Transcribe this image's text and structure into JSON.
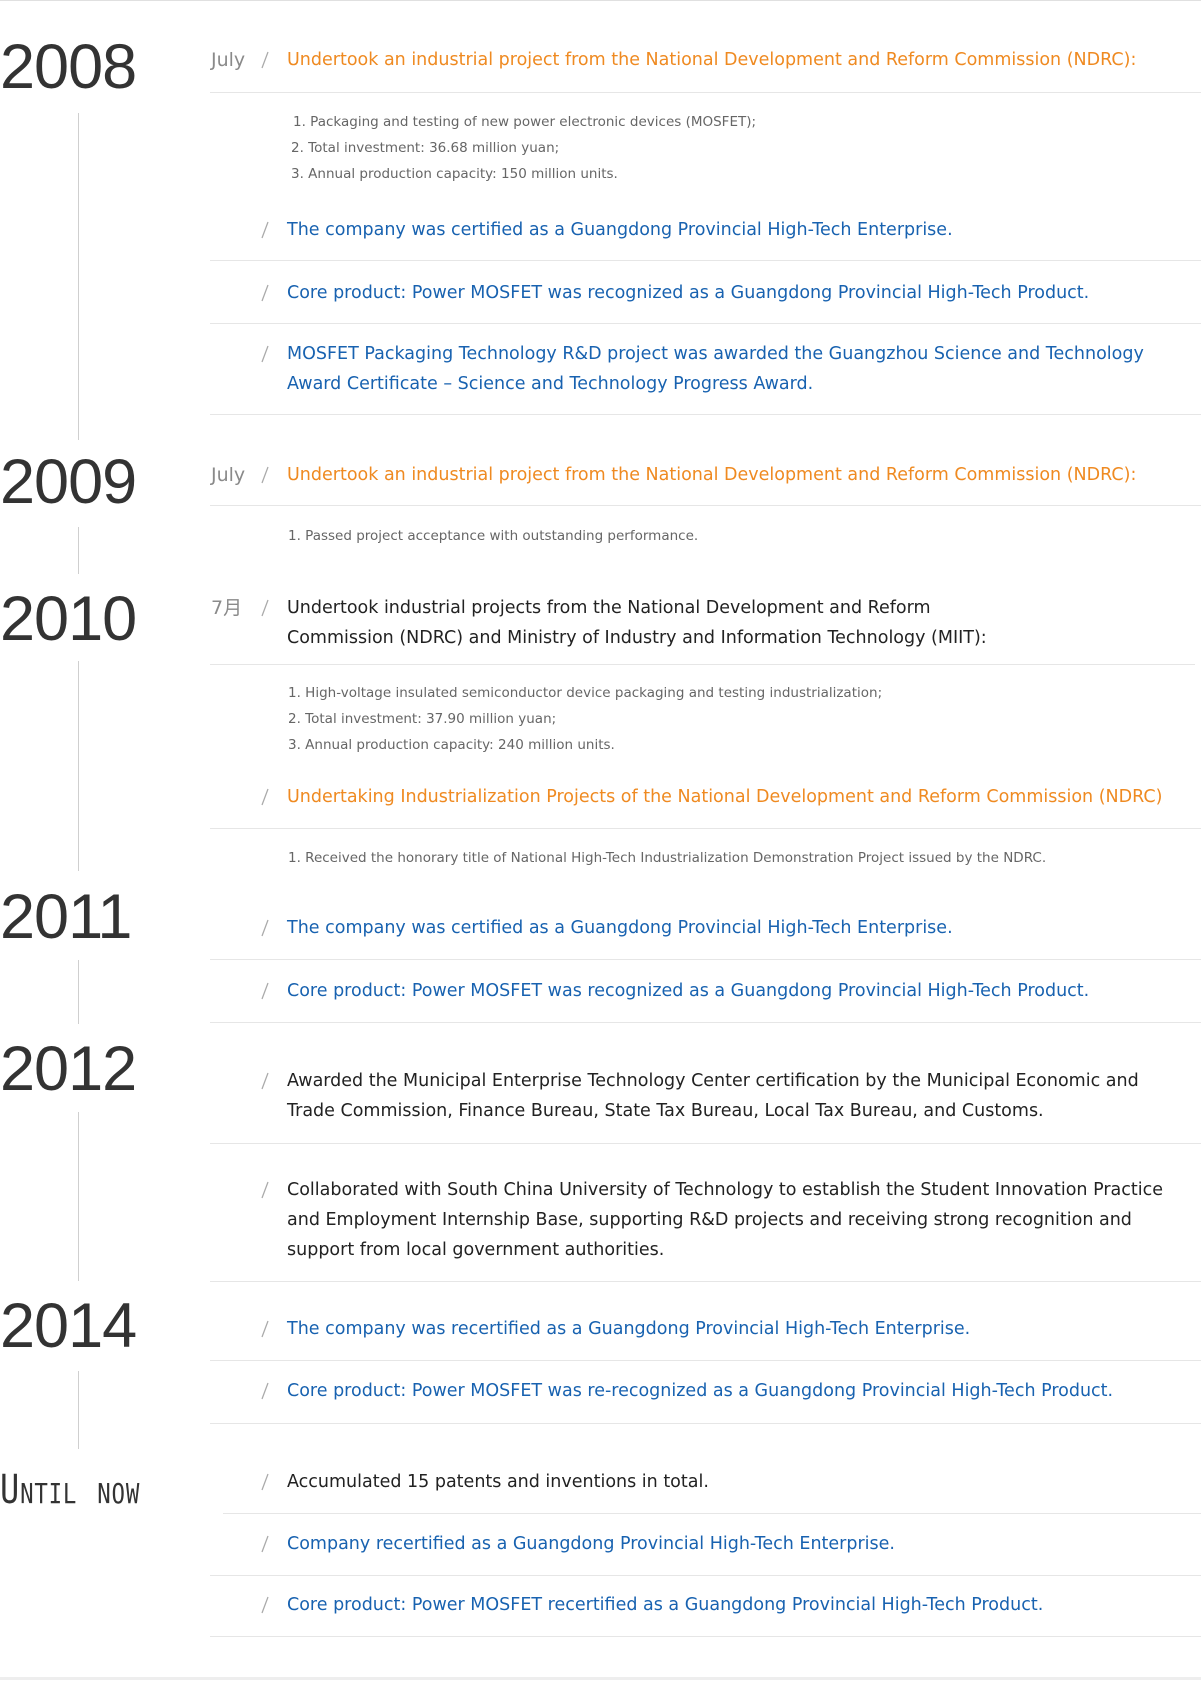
{
  "timeline": [
    {
      "year": "2008",
      "entries": [
        {
          "month": "July",
          "text": "Undertook an industrial project from the National Development and Reform Commission (NDRC):",
          "details": [
            "1. Packaging and testing of new power electronic devices (MOSFET);",
            "2. Total investment: 36.68 million yuan;",
            "3. Annual production capacity: 150 million units."
          ]
        },
        {
          "text": "The company was certified as a Guangdong Provincial High-Tech Enterprise."
        },
        {
          "text": "Core product: Power MOSFET was recognized as a Guangdong Provincial High-Tech Product."
        },
        {
          "text": "MOSFET Packaging Technology R&D project was awarded the Guangzhou Science and Technology Award Certificate – Science and Technology Progress Award."
        }
      ]
    },
    {
      "year": "2009",
      "entries": [
        {
          "month": "July",
          "text": "Undertook an industrial project from the National Development and Reform Commission (NDRC):",
          "details": [
            "1. Passed project acceptance with outstanding performance."
          ]
        }
      ]
    },
    {
      "year": "2010",
      "entries": [
        {
          "month": "7月",
          "text": "Undertook industrial projects from the National Development and Reform Commission (NDRC) and Ministry of Industry and Information Technology (MIIT):",
          "details": [
            "1. High-voltage insulated semiconductor device packaging and testing industrialization;",
            "2. Total investment: 37.90 million yuan;",
            "3. Annual production capacity: 240 million units."
          ]
        },
        {
          "text": "Undertaking Industrialization Projects of the National Development and Reform Commission (NDRC)",
          "details": [
            "1. Received the honorary title of National High-Tech Industrialization Demonstration Project issued by the NDRC."
          ]
        }
      ]
    },
    {
      "year": "2011",
      "entries": [
        {
          "text": "The company was certified as a Guangdong Provincial High-Tech Enterprise."
        },
        {
          "text": "Core product: Power MOSFET was recognized as a Guangdong Provincial High-Tech Product."
        }
      ]
    },
    {
      "year": "2012",
      "entries": [
        {
          "text": "Awarded the Municipal Enterprise Technology Center certification by the Municipal Economic and Trade Commission, Finance Bureau, State Tax Bureau, Local Tax Bureau, and Customs."
        },
        {
          "text": "Collaborated with South China University of Technology to establish the Student Innovation Practice and Employment Internship Base, supporting R&D projects and receiving strong recognition and support from local government authorities."
        }
      ]
    },
    {
      "year": "2014",
      "entries": [
        {
          "text": "The company was recertified as a Guangdong Provincial High-Tech Enterprise."
        },
        {
          "text": "Core product: Power MOSFET was re-recognized as a Guangdong Provincial High-Tech Product."
        }
      ]
    },
    {
      "year": "Until now",
      "entries": [
        {
          "text": "Accumulated 15 patents and inventions in total."
        },
        {
          "text": "Company recertified as a Guangdong Provincial High-Tech Enterprise."
        },
        {
          "text": "Core product: Power MOSFET recertified as a Guangdong Provincial High-Tech Product."
        }
      ]
    }
  ]
}
